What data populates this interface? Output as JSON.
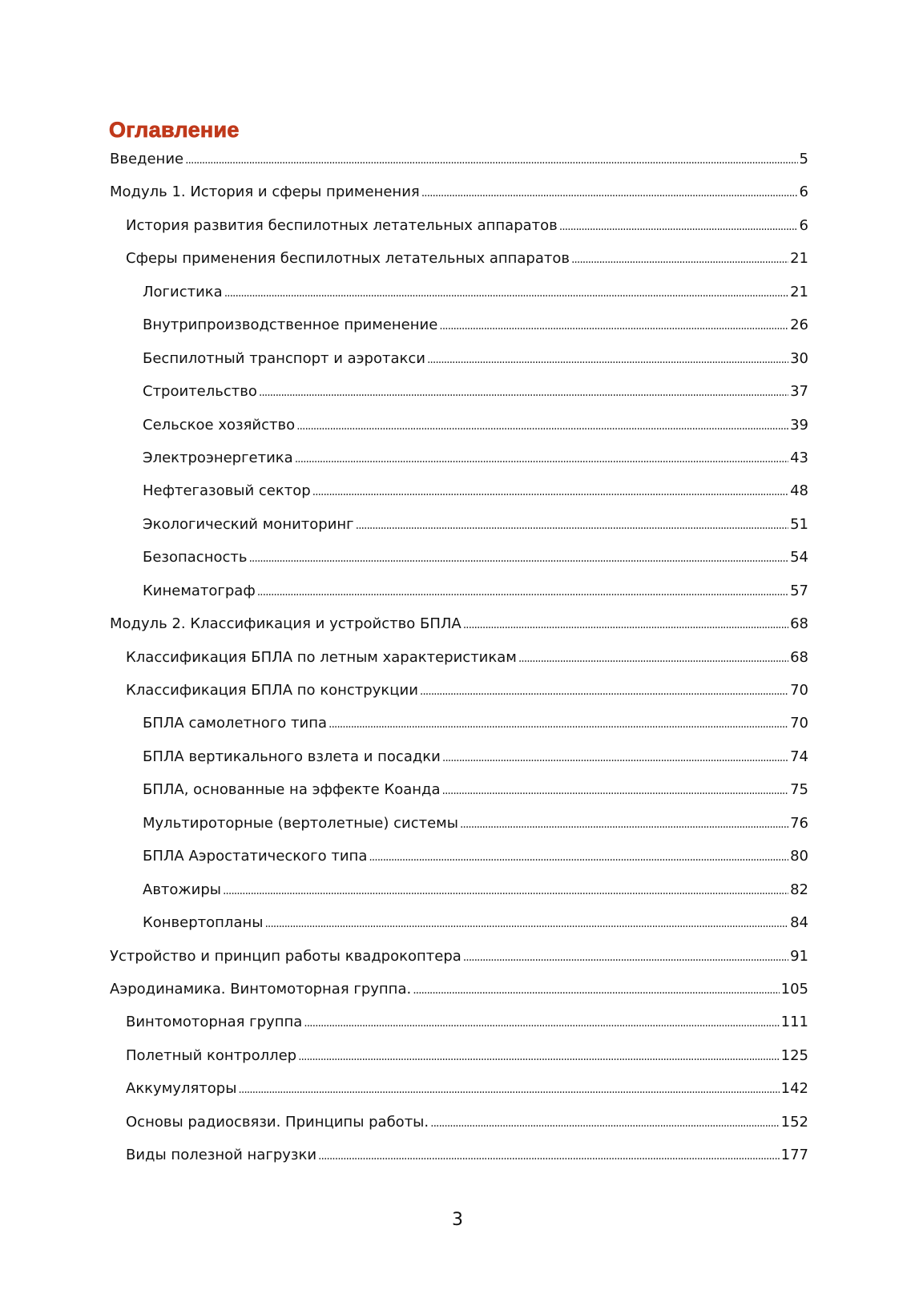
{
  "title": "Оглавление",
  "entries": [
    {
      "level": 0,
      "text": "Введение",
      "page": "5"
    },
    {
      "level": 0,
      "text": "Модуль 1. История и сферы применения",
      "page": "6"
    },
    {
      "level": 1,
      "text": "История развития беспилотных летательных аппаратов",
      "page": "6"
    },
    {
      "level": 1,
      "text": "Сферы применения беспилотных летательных аппаратов",
      "page": "21"
    },
    {
      "level": 2,
      "text": "Логистика",
      "page": "21"
    },
    {
      "level": 2,
      "text": "Внутрипроизводственное применение",
      "page": "26"
    },
    {
      "level": 2,
      "text": "Беспилотный транспорт и аэротакси",
      "page": "30"
    },
    {
      "level": 2,
      "text": "Строительство",
      "page": "37"
    },
    {
      "level": 2,
      "text": "Сельское хозяйство",
      "page": "39"
    },
    {
      "level": 2,
      "text": "Электроэнергетика",
      "page": "43"
    },
    {
      "level": 2,
      "text": "Нефтегазовый сектор",
      "page": "48"
    },
    {
      "level": 2,
      "text": "Экологический мониторинг",
      "page": "51"
    },
    {
      "level": 2,
      "text": "Безопасность",
      "page": "54"
    },
    {
      "level": 2,
      "text": "Кинематограф",
      "page": "57"
    },
    {
      "level": 0,
      "text": "Модуль 2. Классификация и устройство БПЛА",
      "page": "68"
    },
    {
      "level": 1,
      "text": "Классификация БПЛА по летным характеристикам",
      "page": "68"
    },
    {
      "level": 1,
      "text": "Классификация БПЛА по конструкции",
      "page": "70"
    },
    {
      "level": 2,
      "text": "БПЛА самолетного типа",
      "page": "70"
    },
    {
      "level": 2,
      "text": "БПЛА вертикального взлета и посадки",
      "page": "74"
    },
    {
      "level": 2,
      "text": "БПЛА, основанные на эффекте Коанда",
      "page": "75"
    },
    {
      "level": 2,
      "text": "Мультироторные (вертолетные) системы",
      "page": "76"
    },
    {
      "level": 2,
      "text": "БПЛА Аэростатического типа",
      "page": "80"
    },
    {
      "level": 2,
      "text": "Автожиры",
      "page": "82"
    },
    {
      "level": 2,
      "text": "Конвертопланы",
      "page": "84"
    },
    {
      "level": 0,
      "text": "Устройство и принцип работы квадрокоптера",
      "page": "91"
    },
    {
      "level": 0,
      "text": "Аэродинамика. Винтомоторная группа.",
      "page": "105"
    },
    {
      "level": 1,
      "text": "Винтомоторная группа",
      "page": "111"
    },
    {
      "level": 1,
      "text": "Полетный контроллер",
      "page": "125"
    },
    {
      "level": 1,
      "text": "Аккумуляторы",
      "page": "142"
    },
    {
      "level": 1,
      "text": "Основы радиосвязи. Принципы работы.",
      "page": "152"
    },
    {
      "level": 1,
      "text": "Виды полезной нагрузки",
      "page": "177"
    }
  ],
  "page_number": "3",
  "colors": {
    "title": "#c0391b",
    "text": "#111111"
  }
}
